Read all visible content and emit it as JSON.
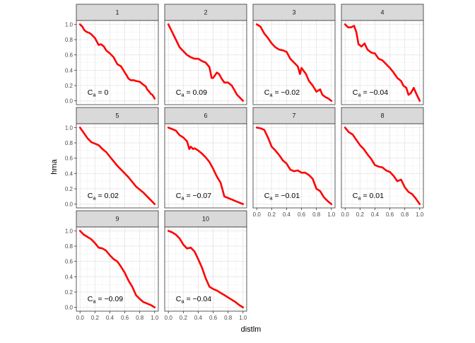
{
  "chart_data": {
    "type": "line",
    "xlabel": "distlm",
    "ylabel": "hma",
    "xlim": [
      0,
      1
    ],
    "ylim": [
      0,
      1
    ],
    "x_ticks": [
      0,
      0.2,
      0.4,
      0.6,
      0.8,
      1
    ],
    "x_tick_labels": [
      "0.0",
      "0.2",
      "0.4",
      "0.6",
      "0.8",
      "1.0"
    ],
    "y_ticks": [
      0,
      0.2,
      0.4,
      0.6,
      0.8,
      1
    ],
    "y_tick_labels": [
      "0.0",
      "0.2",
      "0.4",
      "0.6",
      "0.8",
      "1.0"
    ],
    "grid": true,
    "line_color": "#ff0000",
    "strip_fill": "#d9d9d9",
    "annotation_prefix": "C",
    "annotation_subscript": "a",
    "annotation_equals": " = ",
    "panels": [
      {
        "label": "1",
        "annotation": "0",
        "x": [
          0,
          0.03,
          0.06,
          0.09,
          0.12,
          0.15,
          0.2,
          0.25,
          0.28,
          0.32,
          0.35,
          0.4,
          0.45,
          0.5,
          0.55,
          0.6,
          0.62,
          0.65,
          0.68,
          0.72,
          0.75,
          0.8,
          0.85,
          0.88,
          0.9,
          0.92,
          0.95,
          0.97,
          1.0
        ],
        "y": [
          1.0,
          0.97,
          0.92,
          0.9,
          0.89,
          0.87,
          0.82,
          0.73,
          0.74,
          0.71,
          0.66,
          0.62,
          0.57,
          0.48,
          0.45,
          0.37,
          0.34,
          0.29,
          0.27,
          0.27,
          0.26,
          0.25,
          0.21,
          0.19,
          0.15,
          0.13,
          0.09,
          0.08,
          0.03
        ]
      },
      {
        "label": "2",
        "annotation": "0.09",
        "x": [
          0,
          0.05,
          0.1,
          0.15,
          0.2,
          0.25,
          0.3,
          0.35,
          0.4,
          0.45,
          0.5,
          0.55,
          0.58,
          0.6,
          0.65,
          0.68,
          0.72,
          0.75,
          0.8,
          0.85,
          0.88,
          0.92,
          0.96,
          1.0
        ],
        "y": [
          1.0,
          0.9,
          0.8,
          0.7,
          0.65,
          0.6,
          0.57,
          0.55,
          0.55,
          0.52,
          0.5,
          0.44,
          0.3,
          0.3,
          0.37,
          0.35,
          0.28,
          0.24,
          0.24,
          0.2,
          0.15,
          0.08,
          0.04,
          0.0
        ]
      },
      {
        "label": "3",
        "annotation": "−0.02",
        "x": [
          0,
          0.05,
          0.1,
          0.15,
          0.2,
          0.25,
          0.3,
          0.35,
          0.4,
          0.45,
          0.5,
          0.55,
          0.58,
          0.6,
          0.63,
          0.66,
          0.7,
          0.75,
          0.8,
          0.85,
          0.88,
          0.92,
          0.96,
          1.0
        ],
        "y": [
          1.0,
          0.97,
          0.88,
          0.82,
          0.75,
          0.7,
          0.67,
          0.66,
          0.64,
          0.55,
          0.5,
          0.45,
          0.35,
          0.43,
          0.39,
          0.35,
          0.26,
          0.2,
          0.12,
          0.15,
          0.08,
          0.05,
          0.03,
          0.0
        ]
      },
      {
        "label": "4",
        "annotation": "−0.04",
        "x": [
          0,
          0.04,
          0.08,
          0.12,
          0.15,
          0.18,
          0.22,
          0.26,
          0.3,
          0.35,
          0.4,
          0.45,
          0.5,
          0.55,
          0.6,
          0.65,
          0.7,
          0.75,
          0.78,
          0.82,
          0.85,
          0.88,
          0.92,
          0.96,
          1.0
        ],
        "y": [
          1.0,
          0.96,
          0.96,
          0.98,
          0.9,
          0.74,
          0.71,
          0.75,
          0.67,
          0.63,
          0.62,
          0.55,
          0.53,
          0.48,
          0.43,
          0.37,
          0.3,
          0.26,
          0.2,
          0.17,
          0.08,
          0.1,
          0.17,
          0.08,
          0.0
        ]
      },
      {
        "label": "5",
        "annotation": "0.02",
        "x": [
          0,
          0.05,
          0.1,
          0.15,
          0.2,
          0.25,
          0.3,
          0.35,
          0.4,
          0.45,
          0.5,
          0.55,
          0.6,
          0.65,
          0.7,
          0.75,
          0.8,
          0.85,
          0.9,
          0.95,
          1.0
        ],
        "y": [
          1.0,
          0.93,
          0.86,
          0.81,
          0.79,
          0.77,
          0.72,
          0.68,
          0.62,
          0.56,
          0.5,
          0.45,
          0.4,
          0.35,
          0.29,
          0.23,
          0.19,
          0.15,
          0.1,
          0.05,
          0.0
        ]
      },
      {
        "label": "6",
        "annotation": "−0.07",
        "x": [
          0,
          0.05,
          0.1,
          0.15,
          0.2,
          0.25,
          0.28,
          0.3,
          0.33,
          0.35,
          0.4,
          0.45,
          0.5,
          0.55,
          0.6,
          0.65,
          0.7,
          0.75,
          0.8,
          0.85,
          0.9,
          1.0
        ],
        "y": [
          1.0,
          0.98,
          0.96,
          0.9,
          0.87,
          0.82,
          0.72,
          0.75,
          0.72,
          0.73,
          0.7,
          0.66,
          0.61,
          0.55,
          0.46,
          0.36,
          0.28,
          0.1,
          0.08,
          0.06,
          0.04,
          0.0
        ]
      },
      {
        "label": "7",
        "annotation": "−0.01",
        "x": [
          0,
          0.05,
          0.1,
          0.15,
          0.2,
          0.25,
          0.3,
          0.35,
          0.4,
          0.45,
          0.5,
          0.55,
          0.6,
          0.65,
          0.7,
          0.75,
          0.8,
          0.85,
          0.9,
          0.95,
          1.0
        ],
        "y": [
          1.0,
          0.99,
          0.97,
          0.87,
          0.75,
          0.7,
          0.64,
          0.57,
          0.53,
          0.45,
          0.43,
          0.44,
          0.41,
          0.41,
          0.38,
          0.33,
          0.2,
          0.17,
          0.09,
          0.04,
          0.0
        ]
      },
      {
        "label": "8",
        "annotation": "0.01",
        "x": [
          0,
          0.05,
          0.1,
          0.15,
          0.2,
          0.25,
          0.3,
          0.35,
          0.4,
          0.45,
          0.5,
          0.55,
          0.6,
          0.65,
          0.7,
          0.75,
          0.8,
          0.85,
          0.9,
          0.95,
          1.0
        ],
        "y": [
          1.0,
          0.94,
          0.91,
          0.84,
          0.77,
          0.72,
          0.65,
          0.59,
          0.51,
          0.49,
          0.48,
          0.44,
          0.42,
          0.37,
          0.3,
          0.32,
          0.22,
          0.16,
          0.13,
          0.07,
          0.0
        ]
      },
      {
        "label": "9",
        "annotation": "−0.09",
        "x": [
          0,
          0.05,
          0.1,
          0.15,
          0.2,
          0.25,
          0.3,
          0.35,
          0.4,
          0.45,
          0.5,
          0.55,
          0.6,
          0.65,
          0.7,
          0.75,
          0.8,
          0.85,
          0.9,
          0.95,
          1.0
        ],
        "y": [
          1.0,
          0.95,
          0.92,
          0.89,
          0.84,
          0.78,
          0.77,
          0.74,
          0.68,
          0.63,
          0.6,
          0.53,
          0.45,
          0.35,
          0.27,
          0.16,
          0.11,
          0.07,
          0.05,
          0.03,
          0.0
        ]
      },
      {
        "label": "10",
        "annotation": "−0.04",
        "x": [
          0,
          0.05,
          0.1,
          0.15,
          0.2,
          0.25,
          0.3,
          0.35,
          0.4,
          0.45,
          0.5,
          0.55,
          0.6,
          0.65,
          0.7,
          0.75,
          0.8,
          0.85,
          0.9,
          0.95,
          1.0
        ],
        "y": [
          1.0,
          0.98,
          0.95,
          0.9,
          0.82,
          0.77,
          0.78,
          0.73,
          0.63,
          0.52,
          0.38,
          0.27,
          0.24,
          0.22,
          0.19,
          0.16,
          0.13,
          0.1,
          0.07,
          0.03,
          0.0
        ]
      }
    ]
  }
}
